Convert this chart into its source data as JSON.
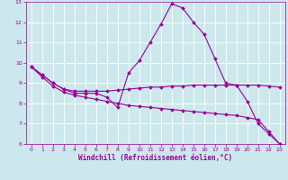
{
  "xlabel": "Windchill (Refroidissement éolien,°C)",
  "background_color": "#cce8ec",
  "line_color": "#990099",
  "grid_color": "#ffffff",
  "xlim": [
    -0.5,
    23.5
  ],
  "ylim": [
    6,
    13
  ],
  "xticks": [
    0,
    1,
    2,
    3,
    4,
    5,
    6,
    7,
    8,
    9,
    10,
    11,
    12,
    13,
    14,
    15,
    16,
    17,
    18,
    19,
    20,
    21,
    22,
    23
  ],
  "yticks": [
    6,
    7,
    8,
    9,
    10,
    11,
    12,
    13
  ],
  "line1_x": [
    0,
    1,
    2,
    3,
    4,
    5,
    6,
    7,
    8,
    9,
    10,
    11,
    12,
    13,
    14,
    15,
    16,
    17,
    18,
    19,
    20,
    21,
    22,
    23
  ],
  "line1_y": [
    9.8,
    9.4,
    9.0,
    8.7,
    8.5,
    8.5,
    8.5,
    8.3,
    7.8,
    9.5,
    10.1,
    11.0,
    11.9,
    12.9,
    12.7,
    12.0,
    11.4,
    10.2,
    9.0,
    8.9,
    8.1,
    7.0,
    6.5,
    6.0
  ],
  "line2_x": [
    0,
    1,
    2,
    3,
    4,
    5,
    6,
    7,
    8,
    9,
    10,
    11,
    12,
    13,
    14,
    15,
    16,
    17,
    18,
    19,
    20,
    21,
    22,
    23
  ],
  "line2_y": [
    9.8,
    9.4,
    9.0,
    8.7,
    8.6,
    8.6,
    8.6,
    8.6,
    8.65,
    8.7,
    8.75,
    8.8,
    8.8,
    8.85,
    8.85,
    8.9,
    8.9,
    8.9,
    8.9,
    8.9,
    8.9,
    8.9,
    8.85,
    8.8
  ],
  "line3_x": [
    0,
    1,
    2,
    3,
    4,
    5,
    6,
    7,
    8,
    9,
    10,
    11,
    12,
    13,
    14,
    15,
    16,
    17,
    18,
    19,
    20,
    21,
    22,
    23
  ],
  "line3_y": [
    9.8,
    9.3,
    8.85,
    8.55,
    8.4,
    8.3,
    8.2,
    8.1,
    8.0,
    7.9,
    7.85,
    7.8,
    7.75,
    7.7,
    7.65,
    7.6,
    7.55,
    7.5,
    7.45,
    7.4,
    7.3,
    7.2,
    6.6,
    6.0
  ],
  "marker": "D",
  "markersize": 2.0,
  "linewidth": 0.8,
  "tick_fontsize": 4.5,
  "xlabel_fontsize": 5.5
}
